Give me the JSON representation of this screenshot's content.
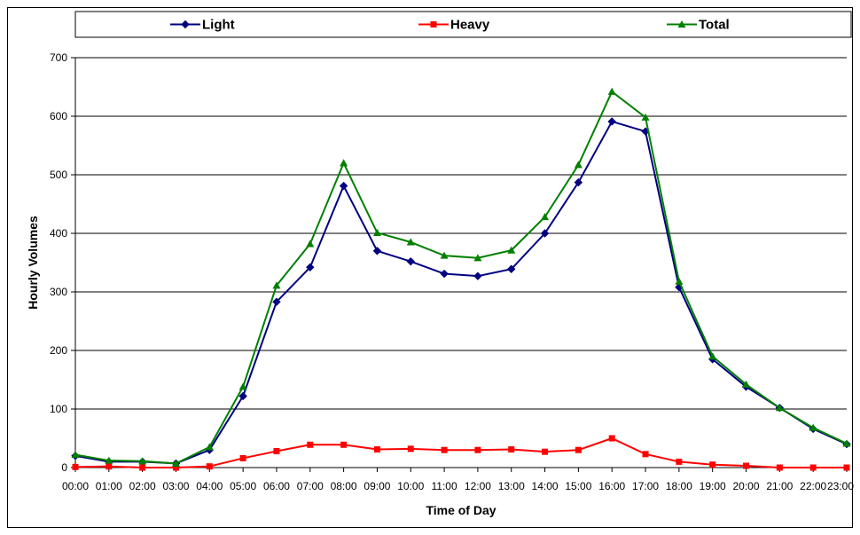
{
  "chart_data": {
    "type": "line",
    "title": "",
    "xlabel": "Time of Day",
    "ylabel": "Hourly Volumes",
    "ylim": [
      0,
      700
    ],
    "yticks": [
      0,
      100,
      200,
      300,
      400,
      500,
      600,
      700
    ],
    "grid": true,
    "legend_position": "top",
    "categories": [
      "00:00",
      "01:00",
      "02:00",
      "03:00",
      "04:00",
      "05:00",
      "06:00",
      "07:00",
      "08:00",
      "09:00",
      "10:00",
      "11:00",
      "12:00",
      "13:00",
      "14:00",
      "15:00",
      "16:00",
      "17:00",
      "18:00",
      "19:00",
      "20:00",
      "21:00",
      "22:00",
      "23:00"
    ],
    "series": [
      {
        "name": "Light",
        "color": "#000080",
        "marker": "diamond",
        "values": [
          20,
          10,
          10,
          7,
          30,
          122,
          283,
          342,
          481,
          370,
          352,
          331,
          327,
          339,
          400,
          487,
          591,
          574,
          308,
          185,
          138,
          102,
          66,
          40
        ]
      },
      {
        "name": "Heavy",
        "color": "#ff0000",
        "marker": "square",
        "values": [
          1,
          2,
          0,
          0,
          2,
          16,
          28,
          39,
          39,
          31,
          32,
          30,
          30,
          31,
          27,
          30,
          50,
          23,
          10,
          5,
          3,
          0,
          0,
          0
        ]
      },
      {
        "name": "Total",
        "color": "#008000",
        "marker": "triangle",
        "values": [
          22,
          12,
          11,
          7,
          35,
          138,
          311,
          382,
          520,
          401,
          385,
          362,
          358,
          371,
          428,
          517,
          642,
          598,
          318,
          190,
          142,
          102,
          68,
          41
        ]
      }
    ]
  }
}
